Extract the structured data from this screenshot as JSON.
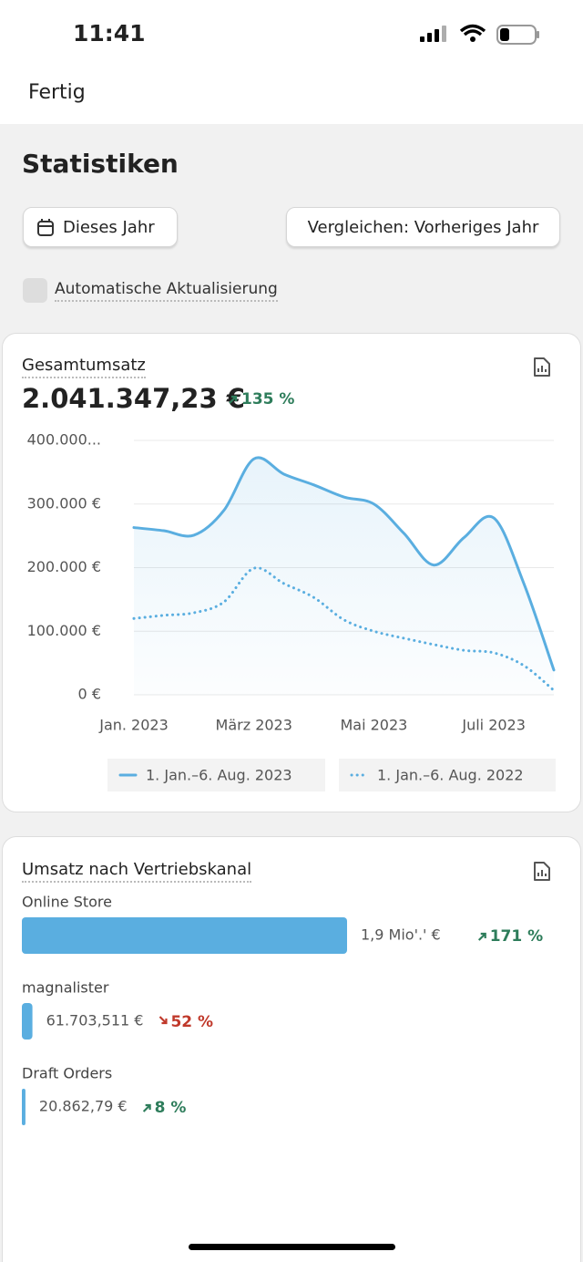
{
  "status_bar": {
    "time": "11:41"
  },
  "header": {
    "done": "Fertig"
  },
  "title": "Statistiken",
  "buttons": {
    "date_range": "Dieses Jahr",
    "compare": "Vergleichen: Vorheriges Jahr"
  },
  "auto_refresh": "Automatische Aktualisierung",
  "total_sales": {
    "title": "Gesamtumsatz",
    "total": "2.041.347,23 €",
    "change": "135 %",
    "chart_data": {
      "type": "line",
      "categories": [
        "Jan. 2023",
        null,
        null,
        null,
        "März 2023",
        null,
        null,
        null,
        "Mai 2023",
        null,
        null,
        null,
        "Juli 2023",
        null,
        null
      ],
      "series": [
        {
          "name": "1. Jan.–6. Aug. 2023",
          "color": "#5aaee0",
          "style": "solid",
          "values": [
            263000,
            258000,
            251000,
            290000,
            371000,
            347000,
            330000,
            311000,
            300000,
            254000,
            204000,
            247000,
            278000,
            175000,
            39000
          ]
        },
        {
          "name": "1. Jan.–6. Aug. 2022",
          "color": "#5aaee0",
          "style": "dotted",
          "values": [
            120000,
            125000,
            129000,
            146000,
            199000,
            175000,
            153000,
            118000,
            100000,
            89000,
            79000,
            70000,
            66000,
            46000,
            7000
          ]
        }
      ],
      "ylim": [
        0,
        400000
      ],
      "yticks": [
        {
          "value": 0,
          "label": "0 €"
        },
        {
          "value": 100000,
          "label": "100.000 €"
        },
        {
          "value": 200000,
          "label": "200.000 €"
        },
        {
          "value": 300000,
          "label": "300.000 €"
        },
        {
          "value": 400000,
          "label": "400.000..."
        }
      ],
      "grid": true,
      "area_fill": true
    }
  },
  "channels": {
    "title": "Umsatz nach Vertriebskanal",
    "chart_data": {
      "type": "bar",
      "orientation": "horizontal",
      "categories": [
        "Online Store",
        "magnalister",
        "Draft Orders"
      ],
      "values": [
        1900000,
        61703.511,
        20862.79
      ],
      "value_labels": [
        "1,9 Mio'.' €",
        "61.703,511 €",
        "20.862,79 €"
      ],
      "color": "#5aaee0",
      "changes": [
        "171 %",
        "52 %",
        "8 %"
      ],
      "change_directions": [
        "up",
        "down",
        "up"
      ]
    }
  }
}
